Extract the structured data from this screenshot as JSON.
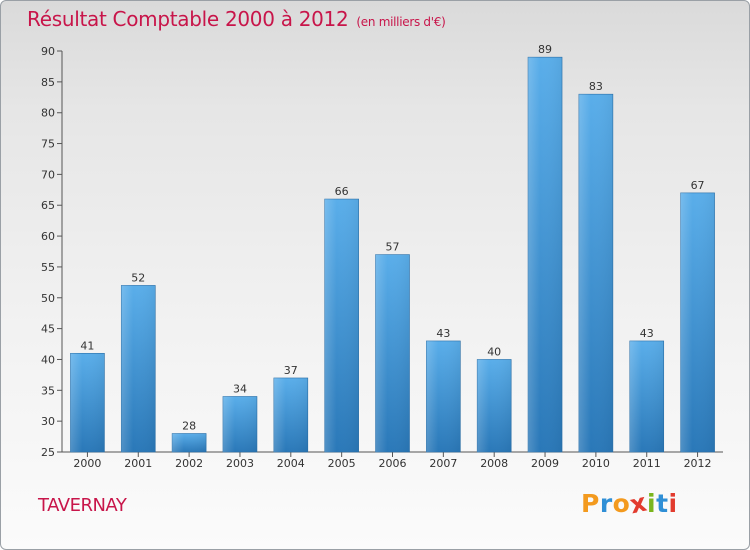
{
  "header": {
    "title": "Résultat Comptable 2000 à 2012",
    "unit": "(en milliers d'€)"
  },
  "footer": {
    "commune": "TAVERNAY",
    "logo": "Proxiti"
  },
  "colors": {
    "title": "#c8154a",
    "bar_top": "#5aaeea",
    "bar_bottom": "#2a78b8",
    "logo_letters": [
      "#f39a1e",
      "#2f8fd6",
      "#f39a1e",
      "#e23b2e",
      "#7ab51d",
      "#2f8fd6",
      "#e23b2e"
    ]
  },
  "chart_data": {
    "type": "bar",
    "title": "Résultat Comptable 2000 à 2012",
    "subtitle": "(en milliers d'€)",
    "categories": [
      "2000",
      "2001",
      "2002",
      "2003",
      "2004",
      "2005",
      "2006",
      "2007",
      "2008",
      "2009",
      "2010",
      "2011",
      "2012"
    ],
    "values": [
      41,
      52,
      28,
      34,
      37,
      66,
      57,
      43,
      40,
      89,
      83,
      43,
      67
    ],
    "ylim": [
      25,
      90
    ],
    "yticks": [
      25,
      30,
      35,
      40,
      45,
      50,
      55,
      60,
      65,
      70,
      75,
      80,
      85,
      90
    ],
    "grid": false,
    "data_labels": true
  }
}
